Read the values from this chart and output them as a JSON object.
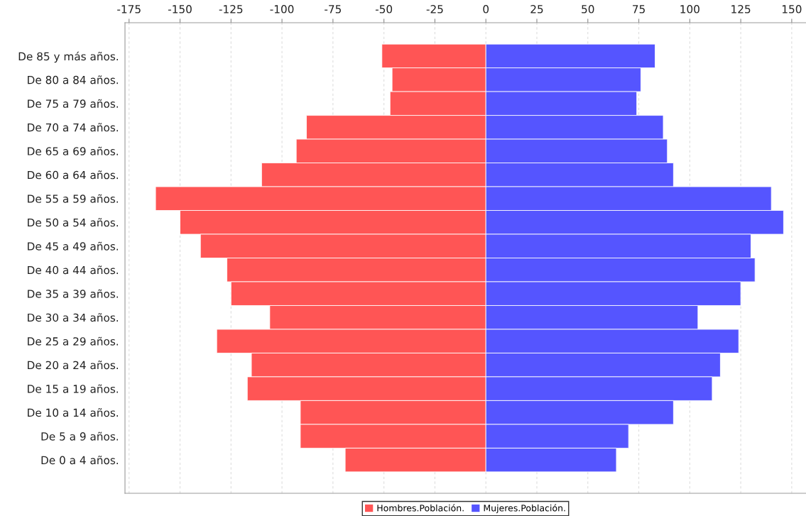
{
  "chart_data": {
    "type": "bar",
    "orientation": "horizontal",
    "categories": [
      "De 85 y más años.",
      "De 80 a 84 años.",
      "De 75 a 79 años.",
      "De 70 a 74 años.",
      "De 65 a 69 años.",
      "De 60 a 64 años.",
      "De 55 a 59 años.",
      "De 50 a 54 años.",
      "De 45 a 49 años.",
      "De 40 a 44 años.",
      "De 35 a 39 años.",
      "De 30 a 34 años.",
      "De 25 a 29 años.",
      "De 20 a 24 años.",
      "De 15 a 19 años.",
      "De 10 a 14 años.",
      "De 5 a 9 años.",
      "De 0 a 4 años."
    ],
    "series": [
      {
        "name": "Hombres.Población.",
        "color": "#ff5555",
        "values": [
          -51,
          -46,
          -47,
          -88,
          -93,
          -110,
          -162,
          -150,
          -140,
          -127,
          -125,
          -106,
          -132,
          -115,
          -117,
          -91,
          -91,
          -69
        ]
      },
      {
        "name": "Mujeres.Población.",
        "color": "#5555ff",
        "values": [
          83,
          76,
          74,
          87,
          89,
          92,
          140,
          146,
          130,
          132,
          125,
          104,
          124,
          115,
          111,
          92,
          70,
          64
        ]
      }
    ],
    "xlim": [
      -177,
      157
    ],
    "xticks": [
      {
        "value": -175,
        "label": "-175"
      },
      {
        "value": -150,
        "label": "-150"
      },
      {
        "value": -125,
        "label": "-125"
      },
      {
        "value": -100,
        "label": "-100"
      },
      {
        "value": -75,
        "label": "-75"
      },
      {
        "value": -50,
        "label": "-50"
      },
      {
        "value": -25,
        "label": "-25"
      },
      0,
      25,
      50,
      75,
      100,
      125,
      150
    ],
    "stacked": true,
    "grid": "x",
    "legend": "bottom"
  }
}
